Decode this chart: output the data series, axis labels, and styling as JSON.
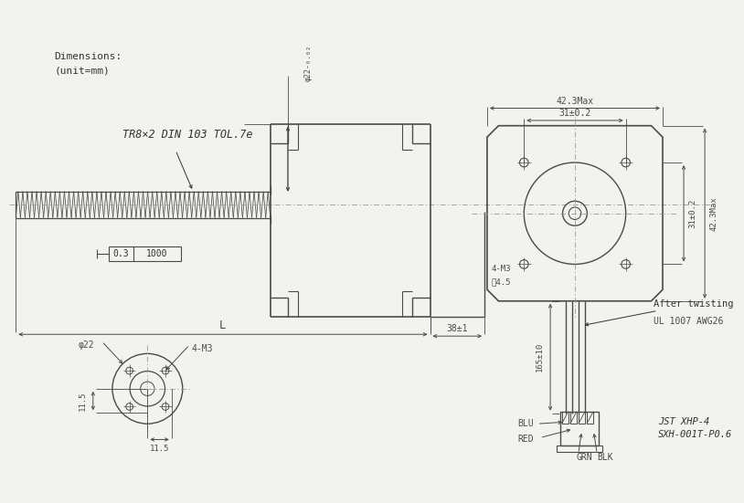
{
  "bg_color": "#f2f2ee",
  "line_color": "#4a4a4a",
  "dim_color": "#4a4a4a",
  "text_color": "#333333",
  "title_text1": "Dimensions:",
  "title_text2": "(unit=mm)",
  "thread_label": "TR8×2 DIN 103 TOL.7e",
  "tolerance_label": "φ22-0.02",
  "tolerance_label_raw": "φ22-₀.₀₂",
  "dim_L": "L",
  "dim_38": "38±1",
  "dim_03": "0.3",
  "dim_1000": "1000",
  "dim_4M3_side": "4-M3",
  "dim_depth": "淲4.5",
  "dim_42_3Max_top": "42.3Max",
  "dim_31_02_top": "31±0.2",
  "dim_31_02_right": "31±0.2",
  "dim_42_3Max_right": "42.3Max",
  "dim_phi22": "φ22",
  "dim_4M3_circle": "4-M3",
  "dim_11_5_v": "11.5",
  "dim_11_5_h": "11.5",
  "dim_165": "165±10",
  "label_blu": "BLU",
  "label_red": "RED",
  "label_grn": "GRN",
  "label_blk": "BLK",
  "label_after": "After twisting",
  "label_ul": "UL 1007 AWG26",
  "label_jst1": "JST XHP-4",
  "label_jst2": "SXH-001T-P0.6"
}
